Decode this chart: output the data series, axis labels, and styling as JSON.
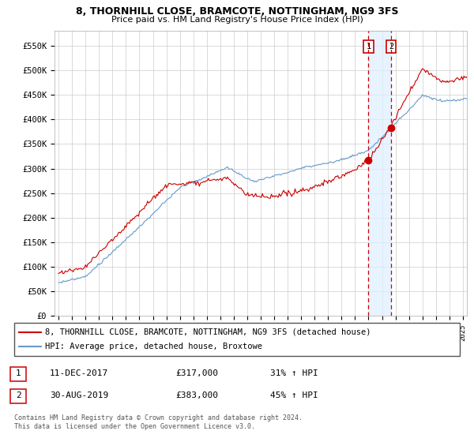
{
  "title": "8, THORNHILL CLOSE, BRAMCOTE, NOTTINGHAM, NG9 3FS",
  "subtitle": "Price paid vs. HM Land Registry's House Price Index (HPI)",
  "ylabel_ticks": [
    "£0",
    "£50K",
    "£100K",
    "£150K",
    "£200K",
    "£250K",
    "£300K",
    "£350K",
    "£400K",
    "£450K",
    "£500K",
    "£550K"
  ],
  "ytick_values": [
    0,
    50000,
    100000,
    150000,
    200000,
    250000,
    300000,
    350000,
    400000,
    450000,
    500000,
    550000
  ],
  "ylim": [
    0,
    580000
  ],
  "red_line_color": "#cc0000",
  "blue_line_color": "#6699cc",
  "vline_color": "#cc0000",
  "shade_color": "#ddeeff",
  "marker1_x": 2018.0,
  "marker2_x": 2019.67,
  "marker1_label": "1",
  "marker2_label": "2",
  "marker1_dot_y": 317000,
  "marker2_dot_y": 383000,
  "legend_line1": "8, THORNHILL CLOSE, BRAMCOTE, NOTTINGHAM, NG9 3FS (detached house)",
  "legend_line2": "HPI: Average price, detached house, Broxtowe",
  "table_row1": [
    "1",
    "11-DEC-2017",
    "£317,000",
    "31% ↑ HPI"
  ],
  "table_row2": [
    "2",
    "30-AUG-2019",
    "£383,000",
    "45% ↑ HPI"
  ],
  "footer": "Contains HM Land Registry data © Crown copyright and database right 2024.\nThis data is licensed under the Open Government Licence v3.0.",
  "bg_color": "#ffffff",
  "grid_color": "#cccccc",
  "xlim_left": 1994.7,
  "xlim_right": 2025.3
}
